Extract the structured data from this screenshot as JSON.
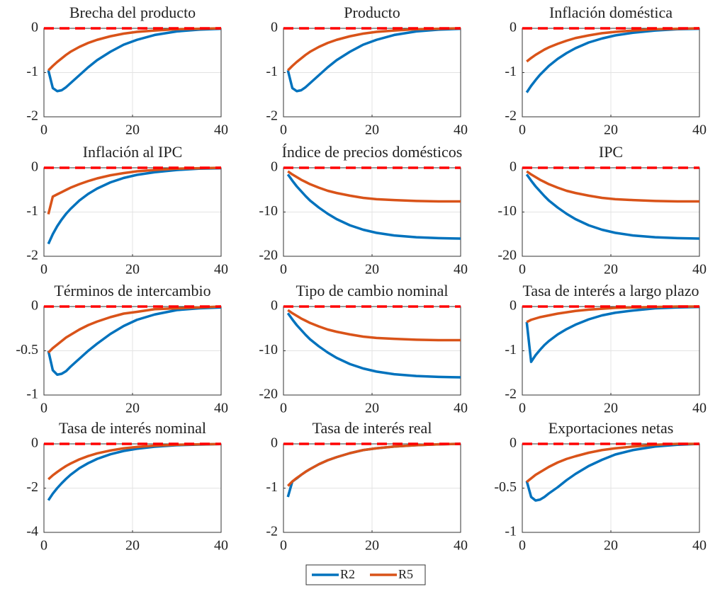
{
  "chart_data": [
    {
      "type": "line",
      "title": "Brecha del producto",
      "x": [
        1,
        2,
        3,
        4,
        5,
        6,
        8,
        10,
        12,
        15,
        18,
        21,
        25,
        30,
        35,
        40
      ],
      "xlim": [
        0,
        40
      ],
      "xticks": [
        0,
        20,
        40
      ],
      "ylim": [
        -2,
        0
      ],
      "yticks": [
        -2,
        -1,
        0
      ],
      "grid": true,
      "hline": 0,
      "series": [
        {
          "values": [
            -0.95,
            -1.35,
            -1.42,
            -1.4,
            -1.33,
            -1.24,
            -1.06,
            -0.88,
            -0.72,
            -0.53,
            -0.37,
            -0.26,
            -0.15,
            -0.07,
            -0.03,
            -0.01
          ]
        },
        {
          "values": [
            -0.95,
            -0.85,
            -0.76,
            -0.68,
            -0.6,
            -0.53,
            -0.42,
            -0.33,
            -0.26,
            -0.18,
            -0.12,
            -0.08,
            -0.05,
            -0.02,
            -0.01,
            0
          ]
        }
      ]
    },
    {
      "type": "line",
      "title": "Producto",
      "x": [
        1,
        2,
        3,
        4,
        5,
        6,
        8,
        10,
        12,
        15,
        18,
        21,
        25,
        30,
        35,
        40
      ],
      "xlim": [
        0,
        40
      ],
      "xticks": [
        0,
        20,
        40
      ],
      "ylim": [
        -2,
        0
      ],
      "yticks": [
        -2,
        -1,
        0
      ],
      "grid": true,
      "hline": 0,
      "series": [
        {
          "values": [
            -0.95,
            -1.35,
            -1.42,
            -1.4,
            -1.33,
            -1.24,
            -1.06,
            -0.88,
            -0.72,
            -0.53,
            -0.37,
            -0.26,
            -0.15,
            -0.07,
            -0.03,
            -0.01
          ]
        },
        {
          "values": [
            -0.95,
            -0.85,
            -0.76,
            -0.68,
            -0.6,
            -0.53,
            -0.42,
            -0.33,
            -0.26,
            -0.18,
            -0.12,
            -0.08,
            -0.05,
            -0.02,
            -0.01,
            0
          ]
        }
      ]
    },
    {
      "type": "line",
      "title": "Inflación doméstica",
      "x": [
        1,
        2,
        3,
        4,
        5,
        6,
        8,
        10,
        12,
        15,
        18,
        21,
        25,
        30,
        35,
        40
      ],
      "xlim": [
        0,
        40
      ],
      "xticks": [
        0,
        20,
        40
      ],
      "ylim": [
        -2,
        0
      ],
      "yticks": [
        -2,
        -1,
        0
      ],
      "grid": true,
      "hline": 0,
      "series": [
        {
          "values": [
            -1.45,
            -1.3,
            -1.17,
            -1.05,
            -0.95,
            -0.85,
            -0.69,
            -0.56,
            -0.45,
            -0.32,
            -0.23,
            -0.16,
            -0.1,
            -0.05,
            -0.02,
            -0.01
          ]
        },
        {
          "values": [
            -0.75,
            -0.67,
            -0.6,
            -0.54,
            -0.48,
            -0.43,
            -0.35,
            -0.28,
            -0.22,
            -0.16,
            -0.11,
            -0.08,
            -0.05,
            -0.02,
            -0.01,
            0
          ]
        }
      ]
    },
    {
      "type": "line",
      "title": "Inflación al IPC",
      "x": [
        1,
        2,
        3,
        4,
        5,
        6,
        8,
        10,
        12,
        15,
        18,
        21,
        25,
        30,
        35,
        40
      ],
      "xlim": [
        0,
        40
      ],
      "xticks": [
        0,
        20,
        40
      ],
      "ylim": [
        -2,
        0
      ],
      "yticks": [
        -2,
        -1,
        0
      ],
      "grid": true,
      "hline": 0,
      "series": [
        {
          "values": [
            -1.72,
            -1.5,
            -1.32,
            -1.17,
            -1.04,
            -0.93,
            -0.74,
            -0.59,
            -0.47,
            -0.33,
            -0.23,
            -0.16,
            -0.1,
            -0.05,
            -0.02,
            -0.01
          ]
        },
        {
          "values": [
            -1.05,
            -0.65,
            -0.6,
            -0.55,
            -0.5,
            -0.45,
            -0.37,
            -0.3,
            -0.24,
            -0.17,
            -0.12,
            -0.08,
            -0.05,
            -0.02,
            -0.01,
            0
          ]
        }
      ]
    },
    {
      "type": "line",
      "title": "Índice de precios domésticos",
      "x": [
        1,
        2,
        3,
        4,
        5,
        6,
        8,
        10,
        12,
        15,
        18,
        21,
        25,
        30,
        35,
        40
      ],
      "xlim": [
        0,
        40
      ],
      "xticks": [
        0,
        20,
        40
      ],
      "ylim": [
        -20,
        0
      ],
      "yticks": [
        -20,
        -10,
        0
      ],
      "grid": true,
      "hline": 0,
      "series": [
        {
          "values": [
            -1.5,
            -2.9,
            -4.2,
            -5.3,
            -6.4,
            -7.4,
            -9,
            -10.4,
            -11.6,
            -13,
            -14,
            -14.7,
            -15.3,
            -15.7,
            -15.9,
            -16
          ]
        },
        {
          "values": [
            -0.8,
            -1.5,
            -2.1,
            -2.7,
            -3.2,
            -3.7,
            -4.5,
            -5.2,
            -5.7,
            -6.3,
            -6.8,
            -7.1,
            -7.3,
            -7.5,
            -7.6,
            -7.6
          ]
        }
      ]
    },
    {
      "type": "line",
      "title": "IPC",
      "x": [
        1,
        2,
        3,
        4,
        5,
        6,
        8,
        10,
        12,
        15,
        18,
        21,
        25,
        30,
        35,
        40
      ],
      "xlim": [
        0,
        40
      ],
      "xticks": [
        0,
        20,
        40
      ],
      "ylim": [
        -20,
        0
      ],
      "yticks": [
        -20,
        -10,
        0
      ],
      "grid": true,
      "hline": 0,
      "series": [
        {
          "values": [
            -1.5,
            -2.9,
            -4.2,
            -5.3,
            -6.4,
            -7.4,
            -9,
            -10.4,
            -11.6,
            -13,
            -14,
            -14.7,
            -15.3,
            -15.7,
            -15.9,
            -16
          ]
        },
        {
          "values": [
            -0.8,
            -1.5,
            -2.1,
            -2.7,
            -3.2,
            -3.7,
            -4.5,
            -5.2,
            -5.7,
            -6.3,
            -6.8,
            -7.1,
            -7.3,
            -7.5,
            -7.6,
            -7.6
          ]
        }
      ]
    },
    {
      "type": "line",
      "title": "Términos de intercambio",
      "x": [
        1,
        2,
        3,
        4,
        5,
        6,
        8,
        10,
        12,
        15,
        18,
        21,
        25,
        30,
        35,
        40
      ],
      "xlim": [
        0,
        40
      ],
      "xticks": [
        0,
        20,
        40
      ],
      "ylim": [
        -1,
        0
      ],
      "yticks": [
        -1,
        -0.5,
        0
      ],
      "grid": true,
      "hline": 0,
      "series": [
        {
          "values": [
            -0.5,
            -0.72,
            -0.77,
            -0.76,
            -0.73,
            -0.68,
            -0.59,
            -0.5,
            -0.42,
            -0.31,
            -0.22,
            -0.15,
            -0.09,
            -0.04,
            -0.02,
            -0.01
          ]
        },
        {
          "values": [
            -0.52,
            -0.47,
            -0.43,
            -0.39,
            -0.35,
            -0.32,
            -0.26,
            -0.21,
            -0.17,
            -0.12,
            -0.08,
            -0.06,
            -0.03,
            -0.02,
            -0.01,
            0
          ]
        }
      ]
    },
    {
      "type": "line",
      "title": "Tipo de cambio nominal",
      "x": [
        1,
        2,
        3,
        4,
        5,
        6,
        8,
        10,
        12,
        15,
        18,
        21,
        25,
        30,
        35,
        40
      ],
      "xlim": [
        0,
        40
      ],
      "xticks": [
        0,
        20,
        40
      ],
      "ylim": [
        -20,
        0
      ],
      "yticks": [
        -20,
        -10,
        0
      ],
      "grid": true,
      "hline": 0,
      "series": [
        {
          "values": [
            -1.5,
            -2.9,
            -4.2,
            -5.3,
            -6.4,
            -7.4,
            -9,
            -10.4,
            -11.6,
            -13,
            -14,
            -14.7,
            -15.3,
            -15.7,
            -15.9,
            -16
          ]
        },
        {
          "values": [
            -0.8,
            -1.5,
            -2.1,
            -2.7,
            -3.2,
            -3.7,
            -4.5,
            -5.2,
            -5.7,
            -6.3,
            -6.8,
            -7.1,
            -7.3,
            -7.5,
            -7.6,
            -7.6
          ]
        }
      ]
    },
    {
      "type": "line",
      "title": "Tasa de interés a largo plazo",
      "x": [
        1,
        2,
        3,
        4,
        5,
        6,
        8,
        10,
        12,
        15,
        18,
        21,
        25,
        30,
        35,
        40
      ],
      "xlim": [
        0,
        40
      ],
      "xticks": [
        0,
        20,
        40
      ],
      "ylim": [
        -2,
        0
      ],
      "yticks": [
        -2,
        -1,
        0
      ],
      "grid": true,
      "hline": 0,
      "series": [
        {
          "values": [
            -0.35,
            -1.25,
            -1.1,
            -0.98,
            -0.87,
            -0.78,
            -0.63,
            -0.51,
            -0.41,
            -0.29,
            -0.2,
            -0.14,
            -0.09,
            -0.04,
            -0.02,
            -0.01
          ]
        },
        {
          "values": [
            -0.35,
            -0.3,
            -0.27,
            -0.24,
            -0.22,
            -0.2,
            -0.16,
            -0.13,
            -0.1,
            -0.07,
            -0.05,
            -0.03,
            -0.02,
            -0.01,
            0,
            0
          ]
        }
      ]
    },
    {
      "type": "line",
      "title": "Tasa de interés nominal",
      "x": [
        1,
        2,
        3,
        4,
        5,
        6,
        8,
        10,
        12,
        15,
        18,
        21,
        25,
        30,
        35,
        40
      ],
      "xlim": [
        0,
        40
      ],
      "xticks": [
        0,
        20,
        40
      ],
      "ylim": [
        -4,
        0
      ],
      "yticks": [
        -4,
        -2,
        0
      ],
      "grid": true,
      "hline": 0,
      "series": [
        {
          "values": [
            -2.55,
            -2.25,
            -2,
            -1.78,
            -1.58,
            -1.4,
            -1.1,
            -0.87,
            -0.68,
            -0.47,
            -0.32,
            -0.22,
            -0.13,
            -0.06,
            -0.03,
            -0.01
          ]
        },
        {
          "values": [
            -1.6,
            -1.42,
            -1.27,
            -1.13,
            -1,
            -0.89,
            -0.7,
            -0.55,
            -0.43,
            -0.3,
            -0.2,
            -0.14,
            -0.08,
            -0.04,
            -0.02,
            -0.01
          ]
        }
      ]
    },
    {
      "type": "line",
      "title": "Tasa de interés real",
      "x": [
        1,
        2,
        3,
        4,
        5,
        6,
        8,
        10,
        12,
        15,
        18,
        21,
        25,
        30,
        35,
        40
      ],
      "xlim": [
        0,
        40
      ],
      "xticks": [
        0,
        20,
        40
      ],
      "ylim": [
        -2,
        0
      ],
      "yticks": [
        -2,
        -1,
        0
      ],
      "grid": true,
      "hline": 0,
      "series": [
        {
          "values": [
            -1.2,
            -0.85,
            -0.78,
            -0.7,
            -0.63,
            -0.57,
            -0.46,
            -0.37,
            -0.3,
            -0.21,
            -0.14,
            -0.1,
            -0.06,
            -0.03,
            -0.01,
            0
          ]
        },
        {
          "values": [
            -0.95,
            -0.85,
            -0.77,
            -0.7,
            -0.63,
            -0.57,
            -0.46,
            -0.37,
            -0.3,
            -0.21,
            -0.14,
            -0.1,
            -0.06,
            -0.03,
            -0.01,
            0
          ]
        }
      ]
    },
    {
      "type": "line",
      "title": "Exportaciones netas",
      "x": [
        1,
        2,
        3,
        4,
        5,
        6,
        8,
        10,
        12,
        15,
        18,
        21,
        25,
        30,
        35,
        40
      ],
      "xlim": [
        0,
        40
      ],
      "xticks": [
        0,
        20,
        40
      ],
      "ylim": [
        -1,
        0
      ],
      "yticks": [
        -1,
        -0.5,
        0
      ],
      "grid": true,
      "hline": 0,
      "series": [
        {
          "values": [
            -0.42,
            -0.6,
            -0.64,
            -0.63,
            -0.6,
            -0.56,
            -0.49,
            -0.41,
            -0.34,
            -0.25,
            -0.18,
            -0.12,
            -0.07,
            -0.03,
            -0.01,
            0
          ]
        },
        {
          "values": [
            -0.43,
            -0.39,
            -0.35,
            -0.32,
            -0.29,
            -0.26,
            -0.21,
            -0.17,
            -0.14,
            -0.1,
            -0.07,
            -0.05,
            -0.03,
            -0.01,
            0,
            0
          ]
        }
      ]
    }
  ],
  "legend": [
    {
      "name": "R2",
      "color": "#0072bd"
    },
    {
      "name": "R5",
      "color": "#d95319"
    }
  ],
  "hline_color": "#ff0000"
}
